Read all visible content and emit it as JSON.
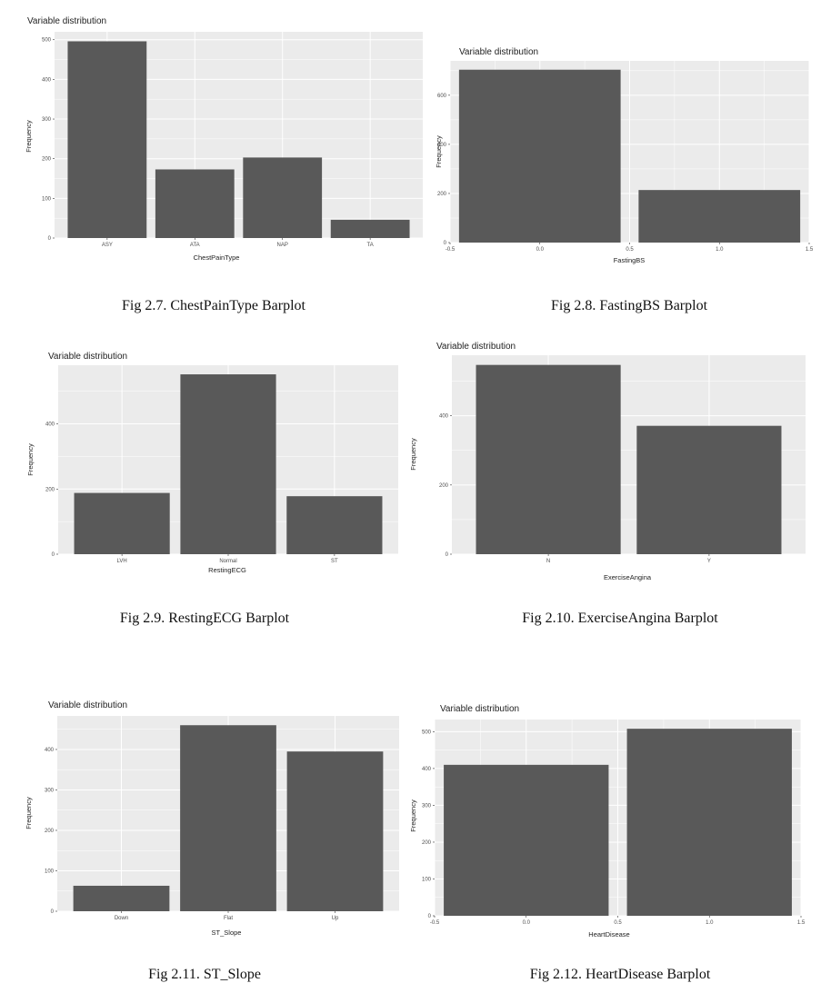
{
  "charts": [
    {
      "caption": "Fig 2.7. ChestPainType Barplot",
      "chart_data": {
        "type": "bar",
        "title": "Variable distribution",
        "xlabel": "ChestPainType",
        "ylabel": "Frequency",
        "x_scale": "categorical",
        "categories": [
          "ASY",
          "ATA",
          "NAP",
          "TA"
        ],
        "values": [
          496,
          173,
          203,
          46
        ],
        "ylim": [
          0,
          520
        ],
        "yticks": [
          0,
          100,
          200,
          300,
          400,
          500
        ],
        "ytick_labels": [
          "0",
          "100",
          "200",
          "300",
          "400",
          "500"
        ],
        "grid": true,
        "bar_color": "#595959",
        "panel_bg": "#ebebeb"
      }
    },
    {
      "caption": "Fig 2.8. FastingBS Barplot",
      "chart_data": {
        "type": "bar",
        "title": "Variable distribution",
        "xlabel": "FastingBS",
        "ylabel": "Frequency",
        "x_scale": "numeric",
        "x": [
          0,
          1
        ],
        "values": [
          704,
          214
        ],
        "xlim": [
          -0.5,
          1.5
        ],
        "xticks": [
          -0.5,
          0,
          0.5,
          1,
          1.5
        ],
        "xtick_labels": [
          "-0.5",
          "0.0",
          "0.5",
          "1.0",
          "1.5"
        ],
        "ylim": [
          0,
          740
        ],
        "yticks": [
          0,
          200,
          400,
          600
        ],
        "ytick_labels": [
          "0",
          "200",
          "400",
          "600"
        ],
        "grid": true,
        "bar_color": "#595959",
        "panel_bg": "#ebebeb"
      }
    },
    {
      "caption": "Fig 2.9. RestingECG Barplot",
      "chart_data": {
        "type": "bar",
        "title": "Variable distribution",
        "xlabel": "RestingECG",
        "ylabel": "Frequency",
        "x_scale": "categorical",
        "categories": [
          "LVH",
          "Normal",
          "ST"
        ],
        "values": [
          188,
          552,
          178
        ],
        "ylim": [
          0,
          580
        ],
        "yticks": [
          0,
          200,
          400
        ],
        "ytick_labels": [
          "0",
          "200",
          "400"
        ],
        "grid": true,
        "bar_color": "#595959",
        "panel_bg": "#ebebeb"
      }
    },
    {
      "caption": "Fig 2.10. ExerciseAngina Barplot",
      "chart_data": {
        "type": "bar",
        "title": "Variable distribution",
        "xlabel": "ExerciseAngina",
        "ylabel": "Frequency",
        "x_scale": "categorical",
        "categories": [
          "N",
          "Y"
        ],
        "values": [
          547,
          371
        ],
        "ylim": [
          0,
          575
        ],
        "yticks": [
          0,
          200,
          400
        ],
        "ytick_labels": [
          "0",
          "200",
          "400"
        ],
        "grid": true,
        "bar_color": "#595959",
        "panel_bg": "#ebebeb"
      }
    },
    {
      "caption": "Fig 2.11. ST_Slope",
      "chart_data": {
        "type": "bar",
        "title": "Variable distribution",
        "xlabel": "ST_Slope",
        "ylabel": "Frequency",
        "x_scale": "categorical",
        "categories": [
          "Down",
          "Flat",
          "Up"
        ],
        "values": [
          63,
          460,
          395
        ],
        "ylim": [
          0,
          483
        ],
        "yticks": [
          0,
          100,
          200,
          300,
          400
        ],
        "ytick_labels": [
          "0",
          "100",
          "200",
          "300",
          "400"
        ],
        "grid": true,
        "bar_color": "#595959",
        "panel_bg": "#ebebeb"
      }
    },
    {
      "caption": "Fig 2.12. HeartDisease Barplot",
      "chart_data": {
        "type": "bar",
        "title": "Variable distribution",
        "xlabel": "HeartDisease",
        "ylabel": "Frequency",
        "x_scale": "numeric",
        "x": [
          0,
          1
        ],
        "values": [
          410,
          508
        ],
        "xlim": [
          -0.5,
          1.5
        ],
        "xticks": [
          -0.5,
          0,
          0.5,
          1,
          1.5
        ],
        "xtick_labels": [
          "-0.5",
          "0.0",
          "0.5",
          "1.0",
          "1.5"
        ],
        "ylim": [
          0,
          533
        ],
        "yticks": [
          0,
          100,
          200,
          300,
          400,
          500
        ],
        "ytick_labels": [
          "0",
          "100",
          "200",
          "300",
          "400",
          "500"
        ],
        "grid": true,
        "bar_color": "#595959",
        "panel_bg": "#ebebeb"
      }
    }
  ]
}
